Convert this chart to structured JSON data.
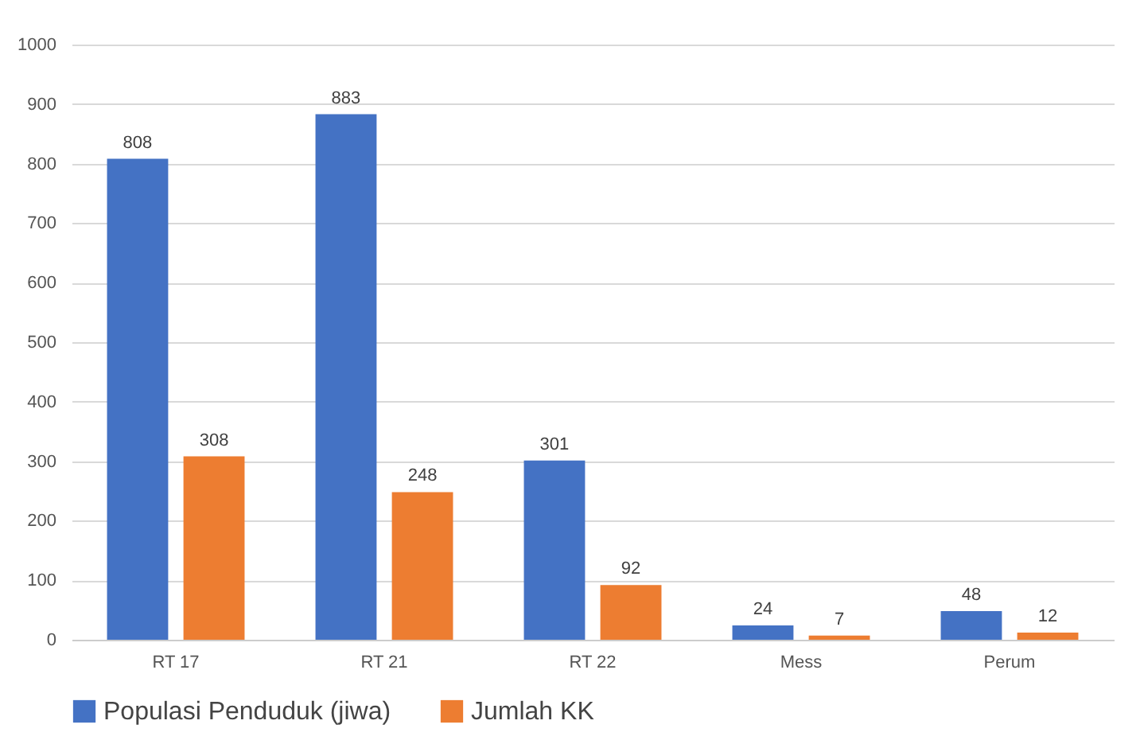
{
  "chart_data": {
    "type": "bar",
    "categories": [
      "RT 17",
      "RT 21",
      "RT 22",
      "Mess",
      "Perum"
    ],
    "series": [
      {
        "name": "Populasi Penduduk (jiwa)",
        "color": "#4472c4",
        "values": [
          808,
          883,
          301,
          24,
          48
        ]
      },
      {
        "name": "Jumlah KK",
        "color": "#ed7d31",
        "values": [
          308,
          248,
          92,
          7,
          12
        ]
      }
    ],
    "ylim": [
      0,
      1000
    ],
    "yticks": [
      0,
      100,
      200,
      300,
      400,
      500,
      600,
      700,
      800,
      900,
      1000
    ],
    "grid": "y",
    "legend": "bottom",
    "data_labels": true
  }
}
